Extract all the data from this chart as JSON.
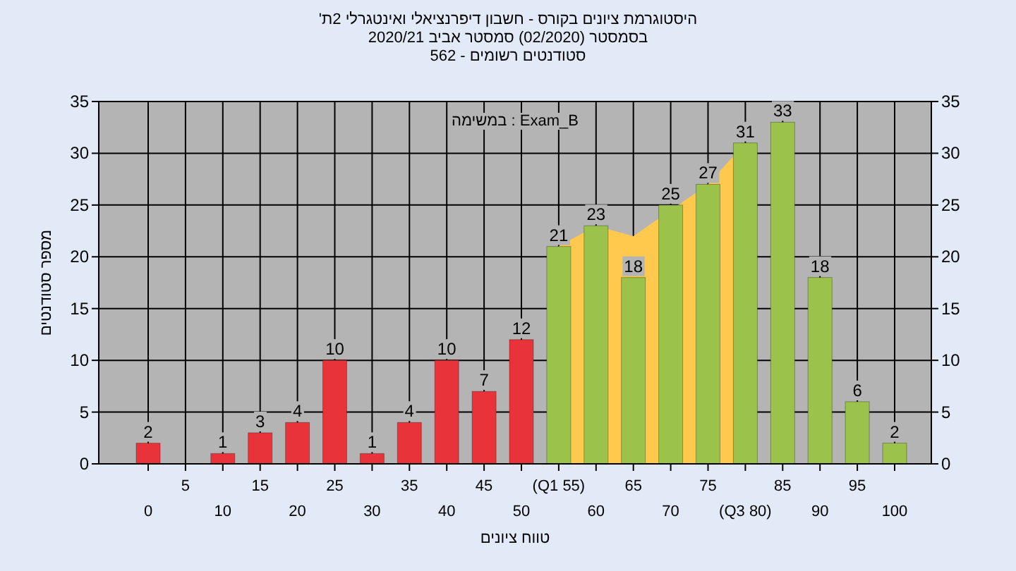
{
  "chart_data": {
    "type": "bar",
    "title": "'היסטוגרמת ציונים בקורס - חשבון דיפרנציאלי ואינטגרלי 2ת",
    "subtitle": "בסמסטר  (02/2020)  סמסטר אביב 2020/21",
    "annotations": [
      "סטודנטים רשומים - 562",
      "במשימה : Exam_B"
    ],
    "xlabel": "טווח ציונים",
    "ylabel": "מספר סטודנטים",
    "categories": [
      "0",
      "5",
      "10",
      "15",
      "20",
      "25",
      "30",
      "35",
      "40",
      "45",
      "50",
      "(Q1 55)",
      "60",
      "65",
      "70",
      "75",
      "(Q3 80)",
      "85",
      "90",
      "95",
      "100"
    ],
    "series": [
      {
        "type": "area",
        "color": "#ffc94d",
        "values": [
          null,
          null,
          null,
          null,
          null,
          null,
          null,
          null,
          null,
          null,
          null,
          21,
          23,
          22,
          null,
          27,
          31,
          null,
          null,
          null,
          null
        ]
      },
      {
        "type": "bar",
        "colors": [
          "#e8333a",
          "#e8333a",
          "#e8333a",
          "#e8333a",
          "#e8333a",
          "#e8333a",
          "#e8333a",
          "#e8333a",
          "#e8333a",
          "#e8333a",
          "#e8333a",
          "#9bc24a",
          "#9bc24a",
          "#9bc24a",
          "#9bc24a",
          "#9bc24a",
          "#9bc24a",
          "#9bc24a",
          "#9bc24a",
          "#9bc24a",
          "#9bc24a"
        ],
        "values": [
          2,
          0,
          1,
          3,
          4,
          10,
          1,
          4,
          10,
          7,
          12,
          21,
          23,
          18,
          25,
          27,
          31,
          33,
          18,
          6,
          2
        ],
        "value_labels": [
          "2",
          null,
          "1",
          "3",
          "4",
          "10",
          "1",
          "4",
          "10",
          "7",
          "12",
          "21",
          "23",
          "18",
          "25",
          "27",
          "31",
          "33",
          "18",
          "6",
          "2"
        ]
      }
    ],
    "ylim": [
      0,
      35
    ],
    "yticks": [
      0,
      5,
      10,
      15,
      20,
      25,
      30,
      35
    ],
    "y2lim": [
      0,
      35
    ],
    "y2ticks": [
      0,
      5,
      10,
      15,
      20,
      25,
      30,
      35
    ],
    "grid": true
  }
}
